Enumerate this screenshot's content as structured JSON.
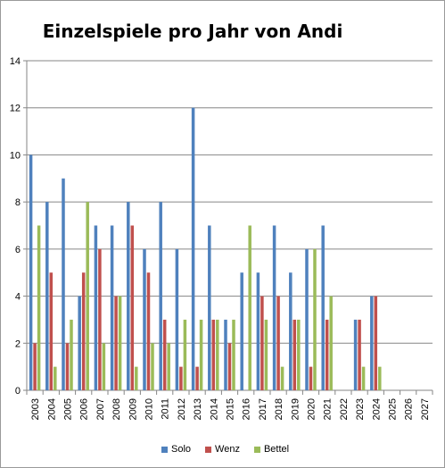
{
  "chart_data": {
    "type": "bar",
    "title": "Einzelspiele pro Jahr von Andi",
    "xlabel": "",
    "ylabel": "",
    "ylim": [
      0,
      14
    ],
    "yticks": [
      0,
      2,
      4,
      6,
      8,
      10,
      12,
      14
    ],
    "grid": "horizontal",
    "legend_position": "bottom",
    "categories": [
      "2003",
      "2004",
      "2005",
      "2006",
      "2007",
      "2008",
      "2009",
      "2010",
      "2011",
      "2012",
      "2013",
      "2014",
      "2015",
      "2016",
      "2017",
      "2018",
      "2019",
      "2020",
      "2021",
      "2022",
      "2023",
      "2024",
      "2025",
      "2026",
      "2027"
    ],
    "series": [
      {
        "name": "Solo",
        "color": "#4F81BD",
        "values": [
          10,
          8,
          9,
          4,
          7,
          7,
          8,
          6,
          8,
          6,
          12,
          7,
          3,
          5,
          5,
          7,
          5,
          6,
          7,
          0,
          3,
          4,
          0,
          0,
          0
        ]
      },
      {
        "name": "Wenz",
        "color": "#C0504D",
        "values": [
          2,
          5,
          2,
          5,
          6,
          4,
          7,
          5,
          3,
          1,
          1,
          3,
          2,
          0,
          4,
          4,
          3,
          1,
          3,
          0,
          3,
          4,
          0,
          0,
          0
        ]
      },
      {
        "name": "Bettel",
        "color": "#9BBB59",
        "values": [
          7,
          1,
          3,
          8,
          2,
          4,
          1,
          2,
          2,
          3,
          3,
          3,
          3,
          7,
          3,
          1,
          3,
          6,
          4,
          0,
          1,
          1,
          0,
          0,
          0
        ]
      }
    ]
  }
}
